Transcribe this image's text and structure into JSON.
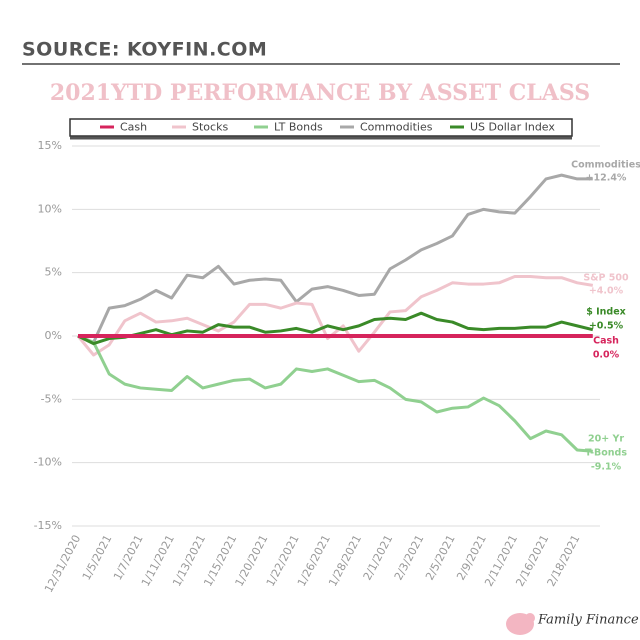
{
  "source": "SOURCE: KOYFIN.COM",
  "brand": "Family Finance Mom",
  "chart_data": {
    "type": "line",
    "title": "2021YTD PERFORMANCE BY ASSET CLASS",
    "categories": [
      "12/31/2020",
      null,
      "1/5/2021",
      null,
      "1/7/2021",
      null,
      "1/11/2021",
      null,
      "1/13/2021",
      null,
      "1/15/2021",
      null,
      "1/20/2021",
      null,
      "1/22/2021",
      null,
      "1/26/2021",
      null,
      "1/28/2021",
      null,
      "2/1/2021",
      null,
      "2/3/2021",
      null,
      "2/5/2021",
      null,
      "2/9/2021",
      null,
      "2/11/2021",
      null,
      "2/16/2021",
      null,
      "2/18/2021",
      null
    ],
    "ylim": [
      -15,
      15
    ],
    "yticks": [
      {
        "value": -15,
        "label": "-15%"
      },
      {
        "value": -10,
        "label": "-10%"
      },
      {
        "value": -5,
        "label": "-5%"
      },
      {
        "value": 0,
        "label": "0%"
      },
      {
        "value": 5,
        "label": "5%"
      },
      {
        "value": 10,
        "label": "10%"
      },
      {
        "value": 15,
        "label": "15%"
      }
    ],
    "grid": true,
    "legend": "top",
    "series": [
      {
        "name": "Cash",
        "color": "#d6245c",
        "end_label": [
          "Cash",
          "0.0%"
        ],
        "values": [
          0,
          0,
          0,
          0,
          0,
          0,
          0,
          0,
          0,
          0,
          0,
          0,
          0,
          0,
          0,
          0,
          0,
          0,
          0,
          0,
          0,
          0,
          0,
          0,
          0,
          0,
          0,
          0,
          0,
          0,
          0,
          0,
          0,
          0
        ]
      },
      {
        "name": "Stocks",
        "color": "#f0c4cc",
        "end_label": [
          "S&P 500",
          "+4.0%"
        ],
        "values": [
          0,
          -1.5,
          -0.7,
          1.2,
          1.8,
          1.1,
          1.2,
          1.4,
          0.9,
          0.4,
          1.1,
          2.5,
          2.5,
          2.2,
          2.6,
          2.5,
          -0.2,
          0.8,
          -1.2,
          0.3,
          1.9,
          2.0,
          3.1,
          3.6,
          4.2,
          4.1,
          4.1,
          4.2,
          4.7,
          4.7,
          4.6,
          4.6,
          4.2,
          4.0
        ]
      },
      {
        "name": "LT Bonds",
        "color": "#90d090",
        "end_label": [
          "20+ Yr",
          "T-Bonds",
          "-9.1%"
        ],
        "values": [
          0,
          -0.5,
          -3.0,
          -3.8,
          -4.1,
          -4.2,
          -4.3,
          -3.2,
          -4.1,
          -3.8,
          -3.5,
          -3.4,
          -4.1,
          -3.8,
          -2.6,
          -2.8,
          -2.6,
          -3.1,
          -3.6,
          -3.5,
          -4.1,
          -5.0,
          -5.2,
          -6.0,
          -5.7,
          -5.6,
          -4.9,
          -5.5,
          -6.7,
          -8.1,
          -7.5,
          -7.8,
          -9.0,
          -9.1
        ]
      },
      {
        "name": "Commodities",
        "color": "#a8a8a8",
        "end_label": [
          "Commodities",
          "+12.4%"
        ],
        "values": [
          0,
          -0.5,
          2.2,
          2.4,
          2.9,
          3.6,
          3.0,
          4.8,
          4.6,
          5.5,
          4.1,
          4.4,
          4.5,
          4.4,
          2.7,
          3.7,
          3.9,
          3.6,
          3.2,
          3.3,
          5.3,
          6.0,
          6.8,
          7.3,
          7.9,
          9.6,
          10.0,
          9.8,
          9.7,
          11.0,
          12.4,
          12.7,
          12.4,
          12.4
        ]
      },
      {
        "name": "US Dollar Index",
        "color": "#3a8a28",
        "end_label": [
          "$ Index",
          "+0.5%"
        ],
        "values": [
          0,
          -0.6,
          -0.2,
          -0.1,
          0.2,
          0.5,
          0.1,
          0.4,
          0.3,
          0.9,
          0.7,
          0.7,
          0.3,
          0.4,
          0.6,
          0.3,
          0.8,
          0.5,
          0.8,
          1.3,
          1.4,
          1.3,
          1.8,
          1.3,
          1.1,
          0.6,
          0.5,
          0.6,
          0.6,
          0.7,
          0.7,
          1.1,
          0.8,
          0.5
        ]
      }
    ]
  }
}
